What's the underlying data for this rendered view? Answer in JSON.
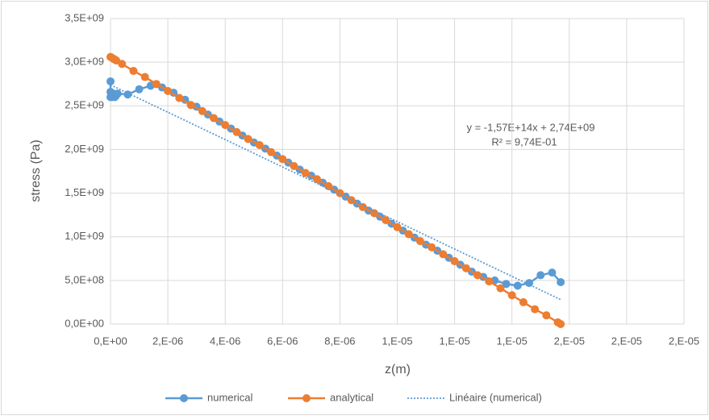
{
  "chart_data": {
    "type": "scatter",
    "x_label": "z(m)",
    "y_label": "stress (Pa)",
    "annotations": [
      "y = -1,57E+14x + 2,74E+09",
      "R² = 9,74E-01"
    ],
    "xlim": [
      0,
      2e-05
    ],
    "xticks": [
      {
        "value": 0,
        "label": "0,E+00"
      },
      {
        "value": 2e-06,
        "label": "2,E-06"
      },
      {
        "value": 4e-06,
        "label": "4,E-06"
      },
      {
        "value": 6e-06,
        "label": "6,E-06"
      },
      {
        "value": 8e-06,
        "label": "8,E-06"
      },
      {
        "value": 1e-05,
        "label": "1,E-05"
      },
      {
        "value": 1.2e-05,
        "label": "1,E-05"
      },
      {
        "value": 1.4e-05,
        "label": "1,E-05"
      },
      {
        "value": 1.6e-05,
        "label": "2,E-05"
      },
      {
        "value": 1.8e-05,
        "label": "2,E-05"
      },
      {
        "value": 2e-05,
        "label": "2,E-05"
      }
    ],
    "ylim": [
      0,
      3500000000
    ],
    "yticks": [
      {
        "value": 0,
        "label": "0,0E+00"
      },
      {
        "value": 500000000,
        "label": "5,0E+08"
      },
      {
        "value": 1000000000,
        "label": "1,0E+09"
      },
      {
        "value": 1500000000,
        "label": "1,5E+09"
      },
      {
        "value": 2000000000,
        "label": "2,0E+09"
      },
      {
        "value": 2500000000,
        "label": "2,5E+09"
      },
      {
        "value": 3000000000,
        "label": "3,0E+09"
      },
      {
        "value": 3500000000,
        "label": "3,5E+09"
      }
    ],
    "grid": true,
    "legend": "bottom",
    "series": [
      {
        "name": "numerical",
        "color": "#5b9bd5",
        "markers": true,
        "line_style": "solid",
        "x": [
          0,
          0,
          0,
          5e-08,
          1e-07,
          1.5e-07,
          2e-07,
          2.5e-07,
          6e-07,
          1e-06,
          1.4e-06,
          1.8e-06,
          2.2e-06,
          2.6e-06,
          3e-06,
          3.4e-06,
          3.8e-06,
          4.2e-06,
          4.6e-06,
          5e-06,
          5.4e-06,
          5.8e-06,
          6.2e-06,
          6.6e-06,
          7e-06,
          7.4e-06,
          7.8e-06,
          8.2e-06,
          8.6e-06,
          9e-06,
          9.4e-06,
          9.8e-06,
          1.02e-05,
          1.06e-05,
          1.1e-05,
          1.14e-05,
          1.18e-05,
          1.22e-05,
          1.26e-05,
          1.3e-05,
          1.34e-05,
          1.38e-05,
          1.42e-05,
          1.46e-05,
          1.5e-05,
          1.54e-05,
          1.57e-05
        ],
        "values": [
          2780000000,
          2600000000,
          2660000000,
          2600000000,
          2640000000,
          2600000000,
          2620000000,
          2640000000,
          2630000000,
          2690000000,
          2730000000,
          2710000000,
          2650000000,
          2570000000,
          2490000000,
          2400000000,
          2320000000,
          2240000000,
          2160000000,
          2080000000,
          2010000000,
          1930000000,
          1850000000,
          1770000000,
          1700000000,
          1620000000,
          1540000000,
          1460000000,
          1380000000,
          1300000000,
          1230000000,
          1150000000,
          1070000000,
          990000000,
          910000000,
          840000000,
          760000000,
          680000000,
          600000000,
          540000000,
          500000000,
          460000000,
          440000000,
          470000000,
          560000000,
          590000000,
          480000000
        ]
      },
      {
        "name": "analytical",
        "color": "#ed7d31",
        "markers": true,
        "line_style": "solid",
        "x": [
          0,
          5e-08,
          1e-07,
          1.5e-07,
          2e-07,
          4e-07,
          8e-07,
          1.2e-06,
          1.6e-06,
          2e-06,
          2.4e-06,
          2.8e-06,
          3.2e-06,
          3.6e-06,
          4e-06,
          4.4e-06,
          4.8e-06,
          5.2e-06,
          5.6e-06,
          6e-06,
          6.4e-06,
          6.8e-06,
          7.2e-06,
          7.6e-06,
          8e-06,
          8.4e-06,
          8.8e-06,
          9.2e-06,
          9.6e-06,
          1e-05,
          1.04e-05,
          1.08e-05,
          1.12e-05,
          1.16e-05,
          1.2e-05,
          1.24e-05,
          1.28e-05,
          1.32e-05,
          1.36e-05,
          1.4e-05,
          1.44e-05,
          1.48e-05,
          1.52e-05,
          1.56e-05,
          1.57e-05
        ],
        "values": [
          3060000000,
          3050000000,
          3040000000,
          3030000000,
          3020000000,
          2980000000,
          2900000000,
          2830000000,
          2750000000,
          2670000000,
          2590000000,
          2510000000,
          2440000000,
          2360000000,
          2280000000,
          2200000000,
          2120000000,
          2050000000,
          1970000000,
          1890000000,
          1810000000,
          1730000000,
          1660000000,
          1580000000,
          1500000000,
          1420000000,
          1340000000,
          1270000000,
          1190000000,
          1110000000,
          1030000000,
          950000000,
          880000000,
          800000000,
          720000000,
          640000000,
          560000000,
          490000000,
          410000000,
          330000000,
          250000000,
          170000000,
          100000000,
          20000000,
          0
        ]
      },
      {
        "name": "Linéaire (numerical)",
        "color": "#5b9bd5",
        "markers": false,
        "line_style": "dotted",
        "x": [
          0,
          1.57e-05
        ],
        "values": [
          2740000000,
          280000000
        ]
      }
    ]
  }
}
